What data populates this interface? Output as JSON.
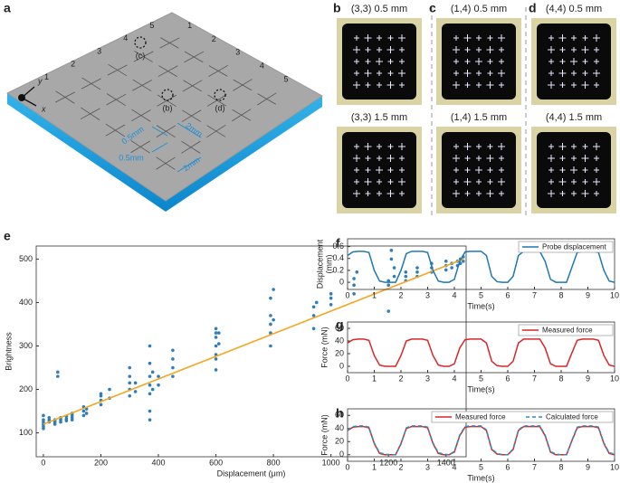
{
  "figure": {
    "panel_labels": [
      "a",
      "b",
      "c",
      "d",
      "e",
      "f",
      "g",
      "h"
    ],
    "diagram": {
      "row_numbers": [
        "1",
        "2",
        "3",
        "4",
        "5"
      ],
      "col_numbers": [
        "1",
        "2",
        "3",
        "4",
        "5"
      ],
      "points": [
        "(b)",
        "(c)",
        "(d)"
      ],
      "dims": [
        "0.5mm",
        "0.5mm",
        "2mm",
        "2mm"
      ],
      "axes": [
        "x",
        "y"
      ]
    },
    "photos": [
      "(3,3) 0.5 mm",
      "(1,4) 0.5 mm",
      "(4,4) 0.5 mm",
      "(3,3) 1.5 mm",
      "(1,4) 1.5 mm",
      "(4,4) 1.5 mm"
    ]
  },
  "chart_data": [
    {
      "type": "scatter",
      "xlabel": "Displacement (μm)",
      "ylabel": "Brightness",
      "xlim": [
        -25,
        1470
      ],
      "ylim": [
        45,
        530
      ],
      "xticks": [
        0,
        200,
        400,
        600,
        800,
        1000,
        1200,
        1400
      ],
      "yticks": [
        100,
        200,
        300,
        400,
        500
      ],
      "series": [
        {
          "color": "#2f7db9",
          "x": [
            0,
            0,
            0,
            0,
            0,
            0,
            20,
            20,
            20,
            40,
            40,
            40,
            40,
            50,
            50,
            60,
            60,
            60,
            80,
            80,
            80,
            100,
            100,
            100,
            100,
            140,
            140,
            140,
            150,
            150,
            200,
            200,
            200,
            200,
            230,
            230,
            300,
            300,
            300,
            300,
            300,
            320,
            320,
            370,
            370,
            370,
            370,
            370,
            370,
            370,
            380,
            380,
            400,
            400,
            450,
            450,
            450,
            450,
            600,
            600,
            600,
            600,
            600,
            600,
            600,
            610,
            610,
            790,
            790,
            790,
            790,
            790,
            800,
            800,
            940,
            940,
            940,
            950,
            1000,
            1000,
            1000,
            1080,
            1080,
            1080,
            1090,
            1200,
            1200,
            1200,
            1210,
            1210,
            1220,
            1220,
            1260,
            1260,
            1260,
            1300,
            1300,
            1300,
            1350,
            1350,
            1350,
            1400,
            1400,
            1400,
            1420,
            1420,
            1440,
            1440,
            1450,
            1450,
            1460,
            1460
          ],
          "values": [
            115,
            120,
            125,
            130,
            140,
            110,
            125,
            130,
            135,
            120,
            125,
            130,
            128,
            230,
            240,
            125,
            130,
            135,
            128,
            132,
            138,
            130,
            135,
            140,
            145,
            140,
            150,
            160,
            145,
            155,
            165,
            175,
            185,
            190,
            180,
            200,
            185,
            200,
            215,
            230,
            250,
            195,
            215,
            130,
            150,
            190,
            210,
            230,
            260,
            300,
            200,
            240,
            210,
            230,
            230,
            250,
            270,
            290,
            245,
            270,
            300,
            320,
            330,
            340,
            280,
            305,
            330,
            300,
            330,
            350,
            370,
            410,
            430,
            360,
            340,
            370,
            390,
            400,
            395,
            410,
            420,
            420,
            440,
            455,
            470,
            380,
            440,
            450,
            500,
            520,
            460,
            480,
            450,
            460,
            470,
            460,
            470,
            480,
            470,
            480,
            490,
            475,
            485,
            495,
            480,
            490,
            485,
            495,
            490,
            500,
            495,
            505
          ]
        }
      ],
      "fit": {
        "color": "#f5a623",
        "x": [
          0,
          1460
        ],
        "values": [
          120,
          500
        ]
      }
    },
    {
      "type": "line",
      "xlabel": "Time(s)",
      "ylabel": [
        "Displacement",
        "(mm)"
      ],
      "xlim": [
        0,
        10
      ],
      "ylim": [
        -0.12,
        0.73
      ],
      "xticks": [
        0,
        1,
        2,
        3,
        4,
        5,
        6,
        7,
        8,
        9,
        10
      ],
      "yticks": [
        0,
        0.2,
        0.4,
        0.6
      ],
      "x": [
        0,
        0.2,
        0.4,
        0.6,
        0.8,
        1,
        1.2,
        1.4,
        1.6,
        1.8,
        2,
        2.2,
        2.4,
        2.6,
        2.8,
        3,
        3.2,
        3.4,
        3.6,
        3.8,
        4,
        4.2,
        4.4,
        4.6,
        4.8,
        5,
        5.2,
        5.4,
        5.6,
        5.8,
        6,
        6.2,
        6.4,
        6.6,
        6.8,
        7,
        7.2,
        7.4,
        7.6,
        7.8,
        8,
        8.2,
        8.4,
        8.6,
        8.8,
        9,
        9.2,
        9.4,
        9.6,
        9.8,
        10
      ],
      "series": [
        {
          "name": "Probe displacement",
          "color": "#1f77b4",
          "values": [
            0.45,
            0.51,
            0.52,
            0.52,
            0.5,
            0.2,
            0.02,
            0,
            0,
            0,
            0.2,
            0.48,
            0.52,
            0.52,
            0.52,
            0.5,
            0.2,
            0.02,
            0,
            0,
            0.05,
            0.35,
            0.51,
            0.52,
            0.52,
            0.52,
            0.45,
            0.1,
            0.01,
            0,
            0,
            0.1,
            0.45,
            0.52,
            0.52,
            0.52,
            0.52,
            0.35,
            0.05,
            0,
            0,
            0,
            0.25,
            0.5,
            0.52,
            0.52,
            0.52,
            0.5,
            0.2,
            0.02,
            0
          ]
        }
      ]
    },
    {
      "type": "line",
      "xlabel": "Time(s)",
      "ylabel": "Force (mN)",
      "xlim": [
        0,
        10
      ],
      "ylim": [
        -10,
        70
      ],
      "xticks": [
        0,
        1,
        2,
        3,
        4,
        5,
        6,
        7,
        8,
        9,
        10
      ],
      "yticks": [
        0,
        20,
        40,
        60
      ],
      "x": [
        0,
        0.2,
        0.4,
        0.6,
        0.8,
        1,
        1.2,
        1.4,
        1.6,
        1.8,
        2,
        2.2,
        2.4,
        2.6,
        2.8,
        3,
        3.2,
        3.4,
        3.6,
        3.8,
        4,
        4.2,
        4.4,
        4.6,
        4.8,
        5,
        5.2,
        5.4,
        5.6,
        5.8,
        6,
        6.2,
        6.4,
        6.6,
        6.8,
        7,
        7.2,
        7.4,
        7.6,
        7.8,
        8,
        8.2,
        8.4,
        8.6,
        8.8,
        9,
        9.2,
        9.4,
        9.6,
        9.8,
        10
      ],
      "series": [
        {
          "name": "Measured force",
          "color": "#d62728",
          "values": [
            37,
            42,
            43,
            43,
            41,
            17,
            2,
            0,
            0,
            0,
            17,
            40,
            43,
            43,
            43,
            41,
            17,
            2,
            0,
            0,
            4,
            29,
            42,
            43,
            43,
            43,
            37,
            8,
            1,
            0,
            0,
            8,
            37,
            43,
            43,
            43,
            43,
            29,
            4,
            0,
            0,
            0,
            21,
            41,
            43,
            43,
            43,
            41,
            17,
            2,
            0
          ]
        }
      ]
    },
    {
      "type": "line",
      "xlabel": "Time(s)",
      "ylabel": "Force (mN)",
      "xlim": [
        0,
        10
      ],
      "ylim": [
        -10,
        70
      ],
      "xticks": [
        0,
        1,
        2,
        3,
        4,
        5,
        6,
        7,
        8,
        9,
        10
      ],
      "yticks": [
        0,
        20,
        40,
        60
      ],
      "x": [
        0,
        0.2,
        0.4,
        0.6,
        0.8,
        1,
        1.2,
        1.4,
        1.6,
        1.8,
        2,
        2.2,
        2.4,
        2.6,
        2.8,
        3,
        3.2,
        3.4,
        3.6,
        3.8,
        4,
        4.2,
        4.4,
        4.6,
        4.8,
        5,
        5.2,
        5.4,
        5.6,
        5.8,
        6,
        6.2,
        6.4,
        6.6,
        6.8,
        7,
        7.2,
        7.4,
        7.6,
        7.8,
        8,
        8.2,
        8.4,
        8.6,
        8.8,
        9,
        9.2,
        9.4,
        9.6,
        9.8,
        10
      ],
      "series": [
        {
          "name": "Measured force",
          "color": "#d62728",
          "values": [
            37,
            42,
            43,
            43,
            41,
            17,
            2,
            0,
            0,
            0,
            17,
            40,
            43,
            43,
            43,
            41,
            17,
            2,
            0,
            0,
            4,
            29,
            42,
            43,
            43,
            43,
            37,
            8,
            1,
            0,
            0,
            8,
            37,
            43,
            43,
            43,
            43,
            29,
            4,
            0,
            0,
            0,
            21,
            41,
            43,
            43,
            43,
            41,
            17,
            2,
            0
          ]
        },
        {
          "name": "Calculated force",
          "color": "#2a8fbd",
          "dashed": true,
          "values": [
            38,
            43,
            44,
            44,
            42,
            18,
            3,
            1,
            0,
            0,
            16,
            41,
            44,
            44,
            44,
            42,
            18,
            3,
            1,
            0,
            5,
            30,
            43,
            44,
            44,
            44,
            38,
            9,
            2,
            0,
            0,
            9,
            38,
            44,
            44,
            44,
            44,
            30,
            5,
            1,
            0,
            0,
            22,
            42,
            44,
            44,
            44,
            42,
            18,
            3,
            1
          ]
        }
      ]
    }
  ]
}
